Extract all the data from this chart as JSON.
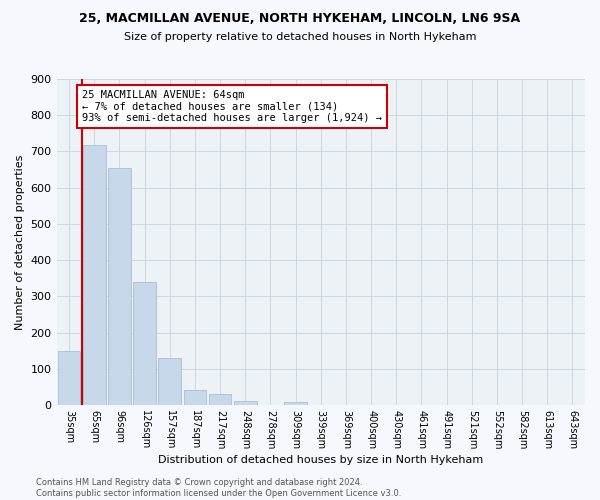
{
  "title1": "25, MACMILLAN AVENUE, NORTH HYKEHAM, LINCOLN, LN6 9SA",
  "title2": "Size of property relative to detached houses in North Hykeham",
  "xlabel": "Distribution of detached houses by size in North Hykeham",
  "ylabel": "Number of detached properties",
  "footnote1": "Contains HM Land Registry data © Crown copyright and database right 2024.",
  "footnote2": "Contains public sector information licensed under the Open Government Licence v3.0.",
  "bar_labels": [
    "35sqm",
    "65sqm",
    "96sqm",
    "126sqm",
    "157sqm",
    "187sqm",
    "217sqm",
    "248sqm",
    "278sqm",
    "309sqm",
    "339sqm",
    "369sqm",
    "400sqm",
    "430sqm",
    "461sqm",
    "491sqm",
    "521sqm",
    "552sqm",
    "582sqm",
    "613sqm",
    "643sqm"
  ],
  "bar_values": [
    150,
    718,
    655,
    340,
    130,
    42,
    30,
    12,
    0,
    8,
    0,
    0,
    0,
    0,
    0,
    0,
    0,
    0,
    0,
    0,
    0
  ],
  "bar_color": "#c8d8eb",
  "bar_edge_color": "#a8bfd0",
  "ylim": [
    0,
    900
  ],
  "yticks": [
    0,
    100,
    200,
    300,
    400,
    500,
    600,
    700,
    800,
    900
  ],
  "annotation_text": "25 MACMILLAN AVENUE: 64sqm\n← 7% of detached houses are smaller (134)\n93% of semi-detached houses are larger (1,924) →",
  "annotation_box_color": "#ffffff",
  "annotation_box_edge": "#cc0000",
  "vline_color": "#cc0000",
  "grid_color": "#c8d4e0",
  "background_color": "#edf2f7",
  "fig_background": "#f5f8fc"
}
